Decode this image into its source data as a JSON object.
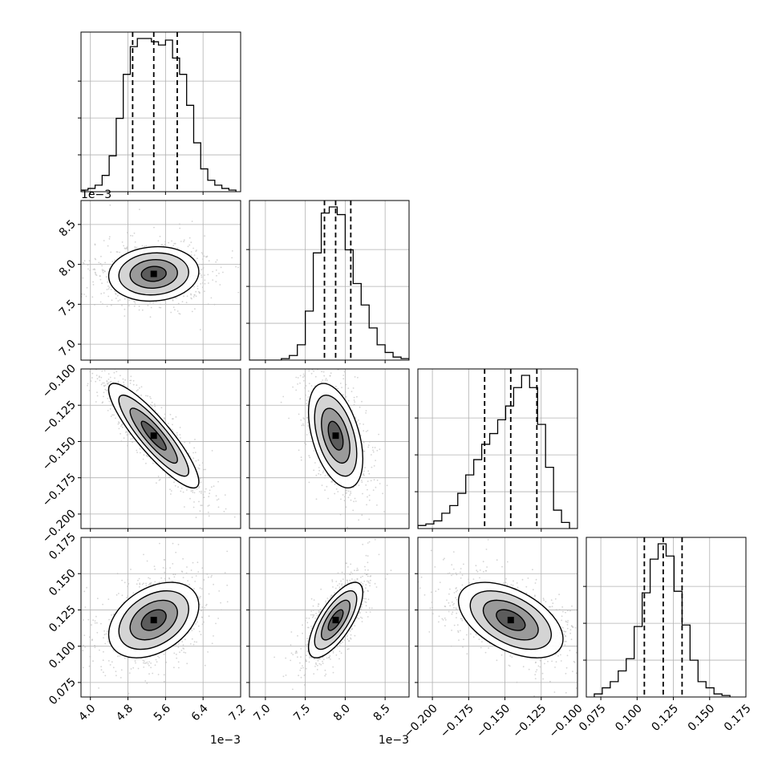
{
  "chart_data": {
    "type": "corner",
    "grid": true,
    "parameters": [
      {
        "key": "p0",
        "range": [
          3.8,
          7.2
        ],
        "ticks": [
          4.0,
          4.8,
          5.6,
          6.4,
          7.2
        ],
        "tick_labels": [
          "4.0",
          "4.8",
          "5.6",
          "6.4",
          "7.2"
        ],
        "offset_text": "1e−3",
        "quantiles": [
          4.9,
          5.35,
          5.85
        ]
      },
      {
        "key": "p1",
        "range": [
          6.8,
          8.8
        ],
        "ticks": [
          7.0,
          7.5,
          8.0,
          8.5
        ],
        "tick_labels": [
          "7.0",
          "7.5",
          "8.0",
          "8.5"
        ],
        "offset_text": "1e−3",
        "quantiles": [
          7.74,
          7.88,
          8.07
        ]
      },
      {
        "key": "p2",
        "range": [
          -0.21,
          -0.1
        ],
        "ticks": [
          -0.2,
          -0.175,
          -0.15,
          -0.125,
          -0.1
        ],
        "tick_labels": [
          "−0.200",
          "−0.175",
          "−0.150",
          "−0.125",
          "−0.100"
        ],
        "offset_text": "",
        "quantiles": [
          -0.164,
          -0.146,
          -0.128
        ]
      },
      {
        "key": "p3",
        "range": [
          0.065,
          0.175
        ],
        "ticks": [
          0.075,
          0.1,
          0.125,
          0.15,
          0.175
        ],
        "tick_labels": [
          "0.075",
          "0.100",
          "0.125",
          "0.150",
          "0.175"
        ],
        "offset_text": "",
        "quantiles": [
          0.105,
          0.118,
          0.131
        ]
      }
    ],
    "histograms": [
      {
        "param": 0,
        "bin_edges": [
          3.8,
          3.95,
          4.1,
          4.25,
          4.4,
          4.55,
          4.7,
          4.85,
          5.0,
          5.15,
          5.3,
          5.45,
          5.6,
          5.75,
          5.9,
          6.05,
          6.2,
          6.35,
          6.5,
          6.65,
          6.8,
          6.95,
          7.1
        ],
        "counts": [
          1,
          2,
          4,
          10,
          22,
          45,
          72,
          89,
          94,
          94,
          92,
          90,
          93,
          82,
          72,
          53,
          30,
          14,
          7,
          4,
          2,
          1
        ]
      },
      {
        "param": 1,
        "bin_edges": [
          6.8,
          6.9,
          7.0,
          7.1,
          7.2,
          7.3,
          7.4,
          7.5,
          7.6,
          7.7,
          7.8,
          7.9,
          8.0,
          8.1,
          8.2,
          8.3,
          8.4,
          8.5,
          8.6,
          8.7,
          8.8
        ],
        "counts": [
          0,
          0,
          0,
          0,
          1,
          3,
          10,
          32,
          70,
          96,
          100,
          95,
          72,
          50,
          36,
          21,
          10,
          5,
          2,
          1
        ]
      },
      {
        "param": 2,
        "bin_edges": [
          -0.21,
          -0.2045,
          -0.199,
          -0.1935,
          -0.188,
          -0.1825,
          -0.177,
          -0.1715,
          -0.166,
          -0.1605,
          -0.155,
          -0.1495,
          -0.144,
          -0.1385,
          -0.133,
          -0.1275,
          -0.122,
          -0.1165,
          -0.111,
          -0.1055,
          -0.1
        ],
        "counts": [
          2,
          3,
          5,
          10,
          15,
          23,
          35,
          45,
          55,
          62,
          71,
          80,
          92,
          100,
          92,
          68,
          40,
          12,
          4,
          0
        ]
      },
      {
        "param": 3,
        "bin_edges": [
          0.0705,
          0.076,
          0.0815,
          0.087,
          0.0925,
          0.098,
          0.1035,
          0.109,
          0.1145,
          0.12,
          0.1255,
          0.131,
          0.1365,
          0.142,
          0.1475,
          0.153,
          0.1585,
          0.164
        ],
        "counts": [
          2,
          6,
          10,
          17,
          25,
          46,
          68,
          90,
          100,
          92,
          69,
          47,
          24,
          10,
          6,
          2,
          1
        ]
      }
    ],
    "joint_distributions": [
      {
        "x_param": 0,
        "y_param": 1,
        "mean": [
          5.35,
          7.88
        ],
        "std": [
          0.48,
          0.17
        ],
        "corr": 0.08
      },
      {
        "x_param": 0,
        "y_param": 2,
        "mean": [
          5.35,
          -0.146
        ],
        "std": [
          0.48,
          0.018
        ],
        "corr": -0.88
      },
      {
        "x_param": 1,
        "y_param": 2,
        "mean": [
          7.88,
          -0.146
        ],
        "std": [
          0.17,
          0.018
        ],
        "corr": -0.45
      },
      {
        "x_param": 0,
        "y_param": 3,
        "mean": [
          5.35,
          0.118
        ],
        "std": [
          0.48,
          0.013
        ],
        "corr": 0.38
      },
      {
        "x_param": 1,
        "y_param": 3,
        "mean": [
          7.88,
          0.118
        ],
        "std": [
          0.17,
          0.013
        ],
        "corr": 0.72
      },
      {
        "x_param": 2,
        "y_param": 3,
        "mean": [
          -0.146,
          0.118
        ],
        "std": [
          0.018,
          0.013
        ],
        "corr": -0.5
      }
    ]
  },
  "style": {
    "line_color": "#000000",
    "grid_color": "#b0b0b0",
    "scatter_color": "#bdbdbd",
    "density_color": "#000000"
  }
}
